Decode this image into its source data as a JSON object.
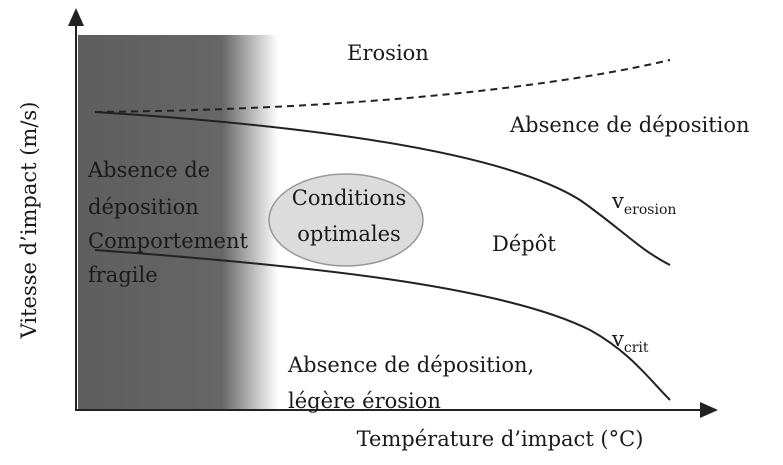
{
  "axes": {
    "y_label": "Vitesse d’impact (m/s)",
    "x_label": "Température d’impact (°C)"
  },
  "regions": {
    "erosion": "Erosion",
    "upper_right": "Absence de déposition",
    "brittle": [
      "Absence de",
      "déposition",
      "Comportement",
      "fragile"
    ],
    "optimal": [
      "Conditions",
      "optimales"
    ],
    "deposit": "Dépôt",
    "lower": [
      "Absence de déposition,",
      "légère érosion"
    ]
  },
  "curves": {
    "erosion": {
      "symbol": "v",
      "subscript": "erosion"
    },
    "critical": {
      "symbol": "v",
      "subscript": "crit"
    }
  }
}
